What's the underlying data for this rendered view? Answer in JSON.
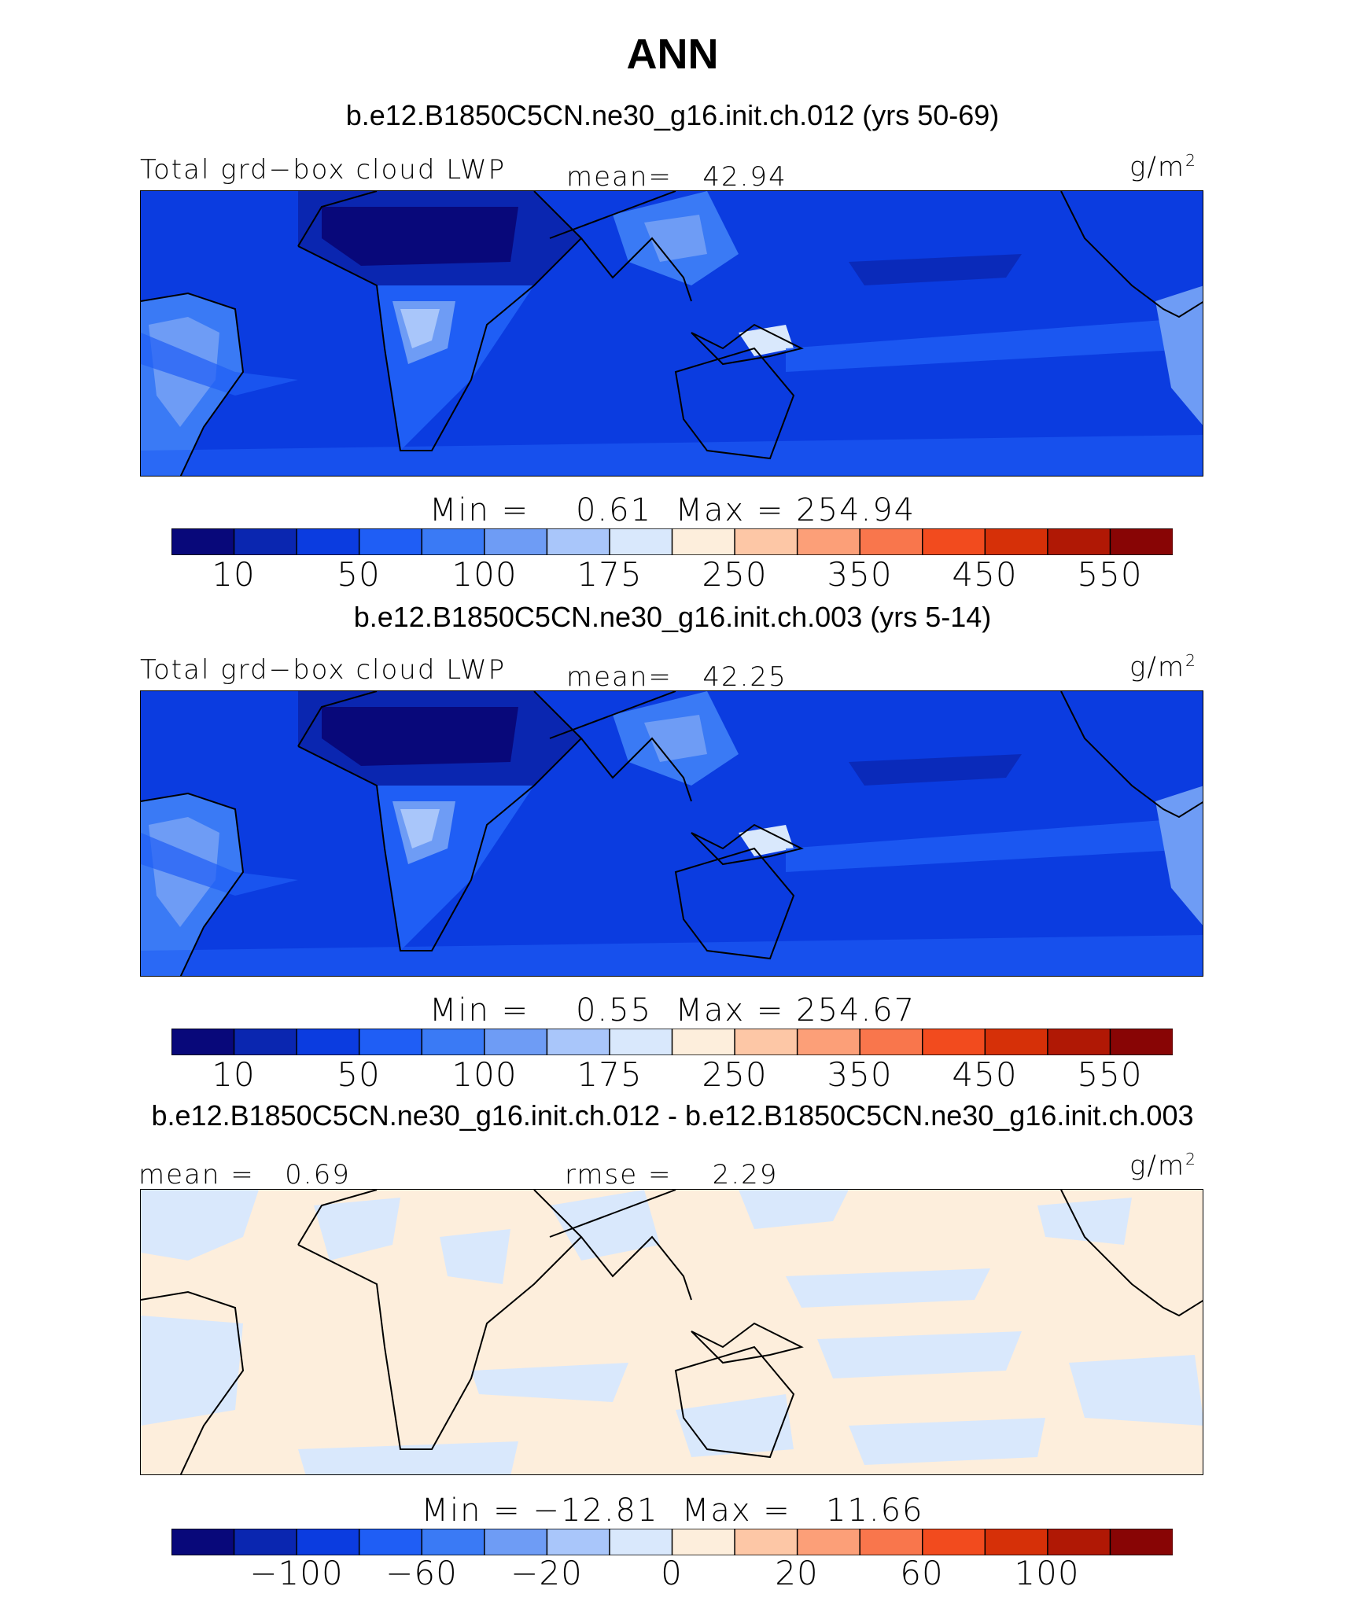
{
  "title": "ANN",
  "colors": [
    "#08087a",
    "#0a26b0",
    "#0b3ce0",
    "#1f5ef5",
    "#3a7af5",
    "#6e9cf5",
    "#a9c6fa",
    "#d9e8fc",
    "#fdeedc",
    "#fdc7a6",
    "#fc9f78",
    "#f9764c",
    "#f24b1e",
    "#d63008",
    "#b01805",
    "#880505"
  ],
  "panels": [
    {
      "title": "b.e12.B1850C5CN.ne30_g16.init.ch.012 (yrs 50-69)",
      "left_label": "Total grd−box cloud LWP",
      "mid_label": "mean=",
      "mid_value": "42.94",
      "unit_base": "g/m",
      "unit_exp": "2",
      "min_label": "Min =",
      "min_value": "0.61",
      "max_label": "Max =",
      "max_value": "254.94",
      "ticks": [
        "10",
        "50",
        "100",
        "175",
        "250",
        "350",
        "450",
        "550"
      ]
    },
    {
      "title": "b.e12.B1850C5CN.ne30_g16.init.ch.003 (yrs 5-14)",
      "left_label": "Total grd−box cloud LWP",
      "mid_label": "mean=",
      "mid_value": "42.25",
      "unit_base": "g/m",
      "unit_exp": "2",
      "min_label": "Min =",
      "min_value": "0.55",
      "max_label": "Max =",
      "max_value": "254.67",
      "ticks": [
        "10",
        "50",
        "100",
        "175",
        "250",
        "350",
        "450",
        "550"
      ]
    },
    {
      "title": "b.e12.B1850C5CN.ne30_g16.init.ch.012 - b.e12.B1850C5CN.ne30_g16.init.ch.003",
      "left_label": "mean =",
      "left_value": "0.69",
      "mid_label": "rmse =",
      "mid_value": "2.29",
      "unit_base": "g/m",
      "unit_exp": "2",
      "min_label": "Min =",
      "min_value": "−12.81",
      "max_label": "Max =",
      "max_value": "11.66",
      "ticks": [
        "−100",
        "−60",
        "−20",
        "0",
        "20",
        "60",
        "100"
      ]
    }
  ]
}
